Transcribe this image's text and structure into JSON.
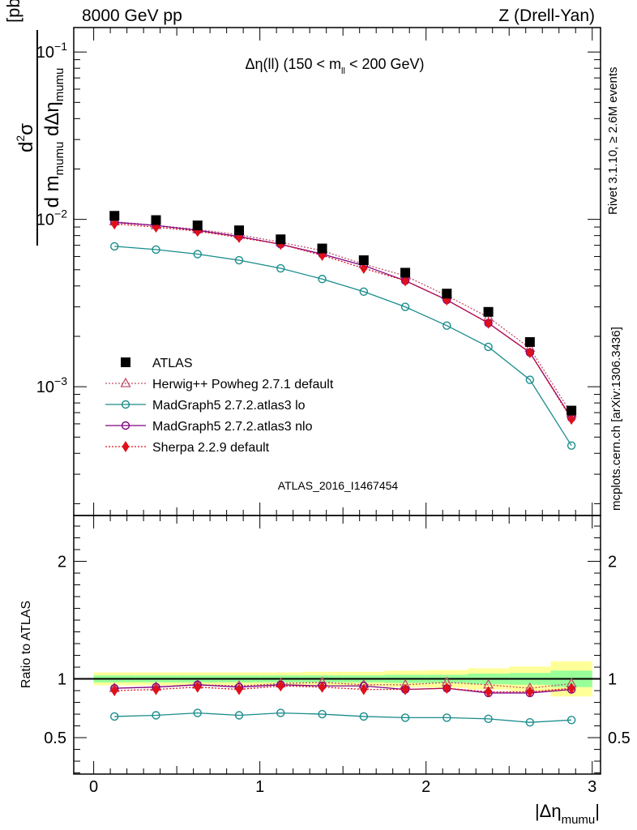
{
  "header": {
    "left": "8000 GeV pp",
    "right": "Z (Drell-Yan)"
  },
  "title": {
    "main": "Δη(ll) (150 < m",
    "sub": "ll",
    "end": " < 200 GeV)"
  },
  "ylabel_top": {
    "num_d": "d",
    "num_exp": "2",
    "num_sigma": "σ",
    "den_d1": "d m",
    "den_sub1": "mumu",
    "den_d2": " dΔη",
    "den_sub2": "mumu",
    "unit": "[pb/GeV]"
  },
  "ylabel_ratio": "Ratio to ATLAS",
  "xlabel": {
    "main": "|Δη",
    "sub": "mumu",
    "end": "|"
  },
  "side_labels": {
    "rivet": "Rivet 3.1.10, ≥ 2.6M events",
    "mcplots": "mcplots.cern.ch [arXiv:1306.3436]"
  },
  "watermark": "ATLAS_2016_I1467454",
  "colors": {
    "atlas": "#000000",
    "herwig": "#c0506a",
    "madgraph_lo": "#1a8c8c",
    "madgraph_nlo": "#800080",
    "sherpa": "#e0101a",
    "band_inner": "#99ff99",
    "band_outer": "#ffff99"
  },
  "chart_data": [
    {
      "type": "scatter",
      "panel": "main",
      "yscale": "log",
      "xlim": [
        -0.12,
        3.05
      ],
      "ylim": [
        0.00017,
        0.14
      ],
      "y_ticks": [
        {
          "value": 0.1,
          "base": "10",
          "exp": "−1"
        },
        {
          "value": 0.01,
          "base": "10",
          "exp": "−2"
        },
        {
          "value": 0.001,
          "base": "10",
          "exp": "−3"
        }
      ],
      "x": [
        0.125,
        0.375,
        0.625,
        0.875,
        1.125,
        1.375,
        1.625,
        1.875,
        2.125,
        2.375,
        2.625,
        2.875
      ],
      "legend_position": "lower-left",
      "series": [
        {
          "name": "ATLAS",
          "key": "atlas",
          "marker": "square",
          "values": [
            0.0105,
            0.0099,
            0.0092,
            0.0086,
            0.0076,
            0.0067,
            0.0057,
            0.0048,
            0.0036,
            0.0028,
            0.00185,
            0.00072
          ]
        },
        {
          "name": "Herwig++ Powheg 2.7.1 default",
          "key": "herwig",
          "marker": "triangle-open",
          "line": "dotted",
          "values": [
            0.0097,
            0.0092,
            0.0087,
            0.0081,
            0.0073,
            0.0065,
            0.0054,
            0.0046,
            0.0035,
            0.0026,
            0.0017,
            0.00069
          ]
        },
        {
          "name": "MadGraph5 2.7.2.atlas3 lo",
          "key": "madgraph_lo",
          "marker": "circle-open",
          "line": "solid",
          "values": [
            0.0069,
            0.0066,
            0.0062,
            0.0057,
            0.0051,
            0.0044,
            0.0037,
            0.003,
            0.00232,
            0.00173,
            0.0011,
            0.000445
          ]
        },
        {
          "name": "MadGraph5 2.7.2.atlas3 nlo",
          "key": "madgraph_nlo",
          "marker": "circle-open",
          "line": "solid",
          "values": [
            0.0096,
            0.0092,
            0.0086,
            0.0079,
            0.0071,
            0.0062,
            0.0053,
            0.0043,
            0.0033,
            0.0024,
            0.0016,
            0.00065
          ]
        },
        {
          "name": "Sherpa 2.2.9 default",
          "key": "sherpa",
          "marker": "diamond",
          "line": "dotted",
          "values": [
            0.0094,
            0.009,
            0.0085,
            0.0078,
            0.0071,
            0.0061,
            0.0051,
            0.0043,
            0.0033,
            0.0024,
            0.0016,
            0.00064
          ]
        }
      ]
    },
    {
      "type": "scatter",
      "panel": "ratio",
      "yscale": "linear",
      "xlabel": "|Δηmumu|",
      "ylabel": "Ratio to ATLAS",
      "xlim": [
        -0.12,
        3.05
      ],
      "ylim": [
        0.19,
        2.39
      ],
      "x_ticks": [
        0,
        1,
        2,
        3
      ],
      "y_ticks": [
        0.5,
        1,
        2
      ],
      "x": [
        0.125,
        0.375,
        0.625,
        0.875,
        1.125,
        1.375,
        1.625,
        1.875,
        2.125,
        2.375,
        2.625,
        2.875
      ],
      "uncertainty_bands": {
        "edges": [
          0,
          0.25,
          0.5,
          0.75,
          1.0,
          1.25,
          1.5,
          1.75,
          2.0,
          2.25,
          2.5,
          2.75,
          3.0
        ],
        "inner": [
          0.03,
          0.03,
          0.03,
          0.03,
          0.03,
          0.03,
          0.03,
          0.035,
          0.035,
          0.045,
          0.05,
          0.07
        ],
        "outer": [
          0.055,
          0.055,
          0.055,
          0.055,
          0.055,
          0.06,
          0.06,
          0.07,
          0.075,
          0.09,
          0.105,
          0.15
        ]
      },
      "series": [
        {
          "name": "Herwig++ Powheg 2.7.1 default",
          "key": "herwig",
          "values": [
            0.92,
            0.93,
            0.95,
            0.94,
            0.96,
            0.97,
            0.95,
            0.95,
            0.97,
            0.95,
            0.92,
            0.96
          ]
        },
        {
          "name": "MadGraph5 2.7.2.atlas3 lo",
          "key": "madgraph_lo",
          "values": [
            0.68,
            0.69,
            0.71,
            0.69,
            0.71,
            0.7,
            0.68,
            0.67,
            0.67,
            0.66,
            0.63,
            0.65
          ]
        },
        {
          "name": "MadGraph5 2.7.2.atlas3 nlo",
          "key": "madgraph_nlo",
          "values": [
            0.92,
            0.93,
            0.95,
            0.93,
            0.95,
            0.94,
            0.94,
            0.91,
            0.92,
            0.88,
            0.88,
            0.91
          ]
        },
        {
          "name": "Sherpa 2.2.9 default",
          "key": "sherpa",
          "values": [
            0.9,
            0.91,
            0.93,
            0.91,
            0.94,
            0.93,
            0.91,
            0.91,
            0.92,
            0.89,
            0.89,
            0.92
          ]
        }
      ]
    }
  ]
}
